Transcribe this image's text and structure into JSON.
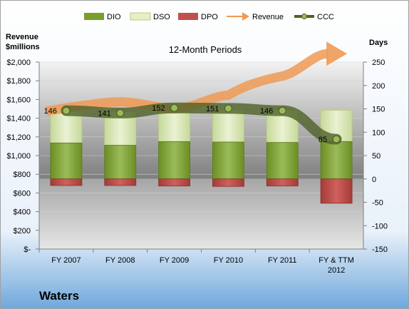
{
  "chart_data": {
    "type": "bar",
    "title": "12-Month Periods",
    "company": "Waters",
    "left_axis_title": "Revenue\n$millions",
    "right_axis_title": "Days",
    "categories": [
      "FY 2007",
      "FY 2008",
      "FY 2009",
      "FY 2010",
      "FY 2011",
      "FY & TTM\n2012"
    ],
    "left_ticks": [
      "$-",
      "$200",
      "$400",
      "$600",
      "$800",
      "$1,000",
      "$1,200",
      "$1,400",
      "$1,600",
      "$1,800",
      "$2,000"
    ],
    "right_ticks": [
      "-150",
      "-100",
      "-50",
      "0",
      "50",
      "100",
      "150",
      "200",
      "250"
    ],
    "ylim_days": [
      -150,
      250
    ],
    "ylim_revenue": [
      0,
      2000
    ],
    "legend": [
      "DIO",
      "DSO",
      "DPO",
      "Revenue",
      "CCC"
    ],
    "colors": {
      "DIO": "#7a9e2e",
      "DSO": "#d8e8a8",
      "DPO": "#c0504d",
      "Revenue": "#ee9a55",
      "CCC": "#4f6228",
      "upper_bg": "#8c8c8c",
      "lower_bg": "#b8b8b8",
      "frame_bg": "#dbe8f6"
    },
    "series": [
      {
        "name": "DIO",
        "values": [
          77,
          72,
          80,
          79,
          78,
          80
        ]
      },
      {
        "name": "DSO",
        "values": [
          73,
          72,
          70,
          70,
          69,
          67
        ]
      },
      {
        "name": "DPO",
        "values": [
          -14,
          -14,
          -15,
          -16,
          -15,
          -52
        ]
      },
      {
        "name": "Revenue",
        "values": [
          1475,
          1575,
          1500,
          1645,
          1850,
          2090
        ]
      },
      {
        "name": "CCC",
        "values": [
          146,
          141,
          152,
          151,
          146,
          85
        ]
      }
    ],
    "data_labels": [
      "146",
      "141",
      "152",
      "151",
      "146",
      "85"
    ],
    "grid": true,
    "legend_position": "top"
  }
}
